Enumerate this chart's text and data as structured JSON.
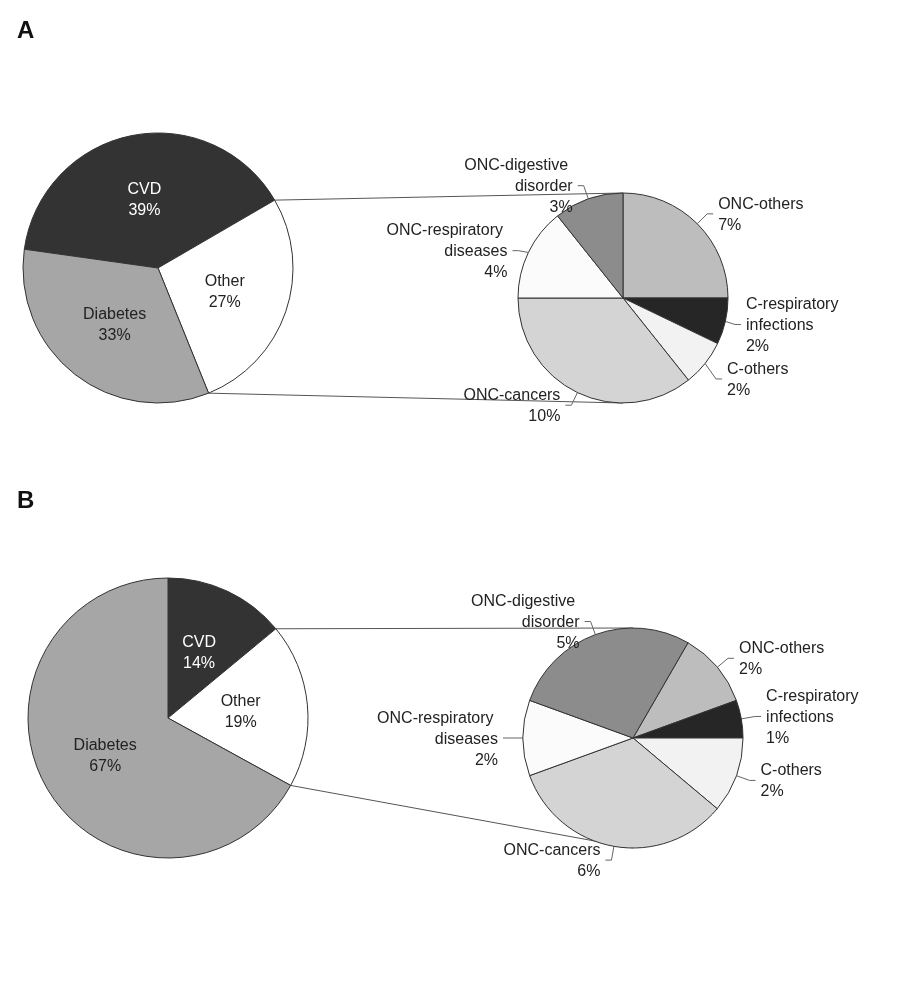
{
  "chart_data": [
    {
      "type": "pie",
      "title": "A",
      "categories": [
        "CVD",
        "Other",
        "Diabetes"
      ],
      "values": [
        39,
        27,
        33
      ],
      "value_labels": [
        "39%",
        "27%",
        "33%"
      ],
      "colors": [
        "#333333",
        "#ffffff",
        "#a6a6a6"
      ]
    },
    {
      "type": "pie",
      "categories": [
        "ONC-others",
        "C-respiratory infections",
        "C-others",
        "ONC-cancers",
        "ONC-respiratory diseases",
        "ONC-digestive disorder"
      ],
      "values": [
        7,
        2,
        2,
        10,
        4,
        3
      ],
      "value_labels": [
        "7%",
        "2%",
        "2%",
        "10%",
        "4%",
        "3%"
      ],
      "colors": [
        "#bdbdbd",
        "#262626",
        "#f2f2f2",
        "#d4d4d4",
        "#fbfbfb",
        "#8c8c8c"
      ]
    },
    {
      "type": "pie",
      "title": "B",
      "categories": [
        "CVD",
        "Other",
        "Diabetes"
      ],
      "values": [
        14,
        19,
        67
      ],
      "value_labels": [
        "14%",
        "19%",
        "67%"
      ],
      "colors": [
        "#333333",
        "#ffffff",
        "#a6a6a6"
      ]
    },
    {
      "type": "pie",
      "categories": [
        "ONC-others",
        "C-respiratory infections",
        "C-others",
        "ONC-cancers",
        "ONC-respiratory diseases",
        "ONC-digestive disorder"
      ],
      "values": [
        2,
        1,
        2,
        6,
        2,
        5
      ],
      "value_labels": [
        "2%",
        "1%",
        "2%",
        "6%",
        "2%",
        "5%"
      ],
      "colors": [
        "#bdbdbd",
        "#262626",
        "#f2f2f2",
        "#d4d4d4",
        "#fbfbfb",
        "#8c8c8c"
      ]
    }
  ]
}
